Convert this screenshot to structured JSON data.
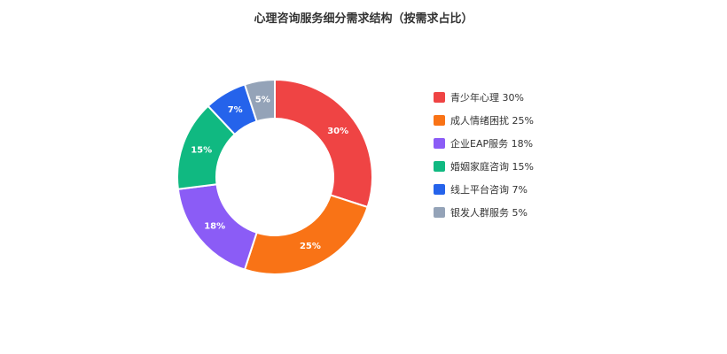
{
  "chart_data": {
    "type": "pie",
    "title": "心理咨询服务细分需求结构（按需求占比）",
    "donut": true,
    "unit": "%",
    "legend_position": "right",
    "slices": [
      {
        "name": "青少年心理",
        "value": 30,
        "label": "30%",
        "legend": "青少年心理 30%",
        "color": "#ef4444"
      },
      {
        "name": "成人情绪困扰",
        "value": 25,
        "label": "25%",
        "legend": "成人情绪困扰 25%",
        "color": "#f97316"
      },
      {
        "name": "企业EAP服务",
        "value": 18,
        "label": "18%",
        "legend": "企业EAP服务 18%",
        "color": "#8b5cf6"
      },
      {
        "name": "婚姻家庭咨询",
        "value": 15,
        "label": "15%",
        "legend": "婚姻家庭咨询 15%",
        "color": "#10b981"
      },
      {
        "name": "线上平台咨询",
        "value": 7,
        "label": "7%",
        "legend": "线上平台咨询 7%",
        "color": "#2563eb"
      },
      {
        "name": "银发人群服务",
        "value": 5,
        "label": "5%",
        "legend": "银发人群服务 5%",
        "color": "#94a3b8"
      }
    ]
  }
}
